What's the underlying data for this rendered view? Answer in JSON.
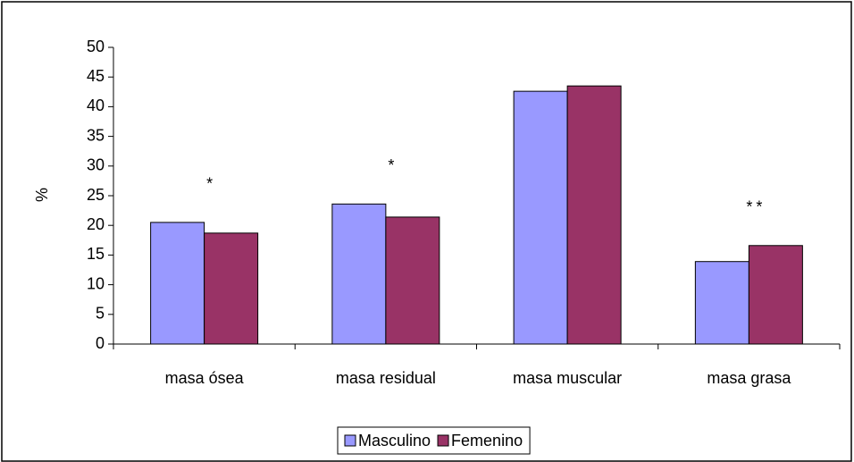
{
  "chart_data": {
    "type": "bar",
    "y_label": "%",
    "categories": [
      "masa ósea",
      "masa residual",
      "masa muscular",
      "masa grasa"
    ],
    "series": [
      {
        "name": "Masculino",
        "color": "#9999ff",
        "values": [
          20.5,
          23.6,
          42.6,
          13.9
        ]
      },
      {
        "name": "Femenino",
        "color": "#993366",
        "values": [
          18.7,
          21.4,
          43.5,
          16.6
        ]
      }
    ],
    "annotations": [
      "*",
      "*",
      null,
      "**"
    ],
    "ylim": [
      0,
      50
    ],
    "yticks": [
      0,
      5,
      10,
      15,
      20,
      25,
      30,
      35,
      40,
      45,
      50
    ],
    "legend": "bottom"
  }
}
